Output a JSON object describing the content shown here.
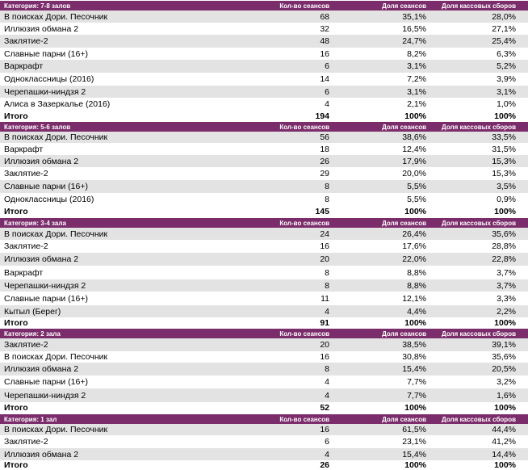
{
  "sections": [
    {
      "title": "Категория: 7-8 залов",
      "headers": [
        "Кол-во сеансов",
        "Доля сеансов",
        "Доля кассовых сборов"
      ],
      "rows": [
        [
          "В поисках Дори. Песочник",
          "68",
          "35,1%",
          "28,0%"
        ],
        [
          "Иллюзия обмана 2",
          "32",
          "16,5%",
          "27,1%"
        ],
        [
          "Заклятие-2",
          "48",
          "24,7%",
          "25,4%"
        ],
        [
          "Славные парни (16+)",
          "16",
          "8,2%",
          "6,3%"
        ],
        [
          "Варкрафт",
          "6",
          "3,1%",
          "5,2%"
        ],
        [
          "Одноклассницы (2016)",
          "14",
          "7,2%",
          "3,9%"
        ],
        [
          "Черепашки-ниндзя 2",
          "6",
          "3,1%",
          "3,1%"
        ],
        [
          "Алиса в Зазеркалье (2016)",
          "4",
          "2,1%",
          "1,0%"
        ]
      ],
      "total": [
        "Итого",
        "194",
        "100%",
        "100%"
      ]
    },
    {
      "title": "Категория: 5-6 залов",
      "headers": [
        "Кол-во сеансов",
        "Доля сеансов",
        "Доля кассовых сборов"
      ],
      "rows": [
        [
          "В поисках Дори. Песочник",
          "56",
          "38,6%",
          "33,5%"
        ],
        [
          "Варкрафт",
          "18",
          "12,4%",
          "31,5%"
        ],
        [
          "Иллюзия обмана 2",
          "26",
          "17,9%",
          "15,3%"
        ],
        [
          "Заклятие-2",
          "29",
          "20,0%",
          "15,3%"
        ],
        [
          "Славные парни (16+)",
          "8",
          "5,5%",
          "3,5%"
        ],
        [
          "Одноклассницы (2016)",
          "8",
          "5,5%",
          "0,9%"
        ]
      ],
      "total": [
        "Итого",
        "145",
        "100%",
        "100%"
      ]
    },
    {
      "title": "Категория: 3-4 зала",
      "headers": [
        "Кол-во сеансов",
        "Доля сеансов",
        "Доля кассовых сборов"
      ],
      "rows": [
        [
          "В поисках Дори. Песочник",
          "24",
          "26,4%",
          "35,6%"
        ],
        [
          "Заклятие-2",
          "16",
          "17,6%",
          "28,8%"
        ],
        [
          "Иллюзия обмана 2",
          "20",
          "22,0%",
          "22,8%"
        ],
        [
          "Варкрафт",
          "8",
          "8,8%",
          "3,7%"
        ],
        [
          "Черепашки-ниндзя 2",
          "8",
          "8,8%",
          "3,7%"
        ],
        [
          "Славные парни (16+)",
          "11",
          "12,1%",
          "3,3%"
        ],
        [
          "Кытыл (Берег)",
          "4",
          "4,4%",
          "2,2%"
        ]
      ],
      "total": [
        "Итого",
        "91",
        "100%",
        "100%"
      ]
    },
    {
      "title": "Категория: 2 зала",
      "headers": [
        "Кол-во сеансов",
        "Доля сеансов",
        "Доля кассовых сборов"
      ],
      "rows": [
        [
          "Заклятие-2",
          "20",
          "38,5%",
          "39,1%"
        ],
        [
          "В поисках Дори. Песочник",
          "16",
          "30,8%",
          "35,6%"
        ],
        [
          "Иллюзия обмана 2",
          "8",
          "15,4%",
          "20,5%"
        ],
        [
          "Славные парни (16+)",
          "4",
          "7,7%",
          "3,2%"
        ],
        [
          "Черепашки-ниндзя 2",
          "4",
          "7,7%",
          "1,6%"
        ]
      ],
      "total": [
        "Итого",
        "52",
        "100%",
        "100%"
      ]
    },
    {
      "title": "Категория: 1 зал",
      "headers": [
        "Кол-во сеансов",
        "Доля сеансов",
        "Доля кассовых сборов"
      ],
      "rows": [
        [
          "В поисках Дори. Песочник",
          "16",
          "61,5%",
          "44,4%"
        ],
        [
          "Заклятие-2",
          "6",
          "23,1%",
          "41,2%"
        ],
        [
          "Иллюзия обмана 2",
          "4",
          "15,4%",
          "14,4%"
        ]
      ],
      "total": [
        "Итого",
        "26",
        "100%",
        "100%"
      ]
    }
  ]
}
